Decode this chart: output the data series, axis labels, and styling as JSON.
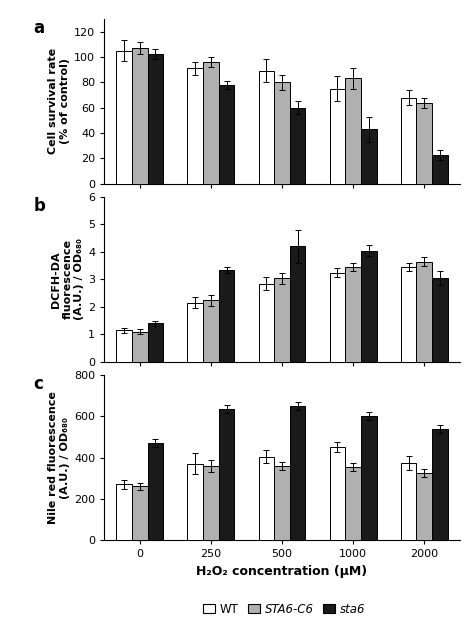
{
  "concentrations": [
    0,
    250,
    500,
    1000,
    2000
  ],
  "x_labels": [
    "0",
    "250",
    "500",
    "1000",
    "2000"
  ],
  "panel_a": {
    "ylabel": "Cell survival rate\n(% of control)",
    "ylim": [
      0,
      130
    ],
    "yticks": [
      0,
      20,
      40,
      60,
      80,
      100,
      120
    ],
    "WT": [
      105,
      91,
      89,
      75,
      68
    ],
    "STA6C6": [
      107,
      96,
      80,
      83,
      64
    ],
    "sta6": [
      102,
      78,
      60,
      43,
      23
    ],
    "WT_err": [
      8,
      5,
      9,
      10,
      6
    ],
    "STA6C6_err": [
      5,
      4,
      6,
      8,
      4
    ],
    "sta6_err": [
      4,
      3,
      5,
      10,
      4
    ]
  },
  "panel_b": {
    "ylabel": "DCFH-DA\nfluorescence\n(A.U.) / OD₆₈₀",
    "ylim": [
      0,
      6
    ],
    "yticks": [
      0,
      1,
      2,
      3,
      4,
      5,
      6
    ],
    "WT": [
      1.15,
      2.15,
      2.85,
      3.25,
      3.45
    ],
    "STA6C6": [
      1.1,
      2.25,
      3.05,
      3.45,
      3.65
    ],
    "sta6": [
      1.4,
      3.35,
      4.2,
      4.05,
      3.05
    ],
    "WT_err": [
      0.1,
      0.2,
      0.25,
      0.15,
      0.15
    ],
    "STA6C6_err": [
      0.08,
      0.2,
      0.2,
      0.15,
      0.15
    ],
    "sta6_err": [
      0.08,
      0.1,
      0.6,
      0.2,
      0.25
    ]
  },
  "panel_c": {
    "ylabel": "Nile red fluorescence\n(A.U.) / OD₆₈₀",
    "ylim": [
      0,
      800
    ],
    "yticks": [
      0,
      200,
      400,
      600,
      800
    ],
    "WT": [
      270,
      370,
      405,
      450,
      375
    ],
    "STA6C6": [
      260,
      360,
      360,
      355,
      325
    ],
    "sta6": [
      470,
      635,
      650,
      600,
      540
    ],
    "WT_err": [
      20,
      50,
      30,
      25,
      35
    ],
    "STA6C6_err": [
      15,
      30,
      20,
      20,
      20
    ],
    "sta6_err": [
      20,
      20,
      20,
      20,
      20
    ]
  },
  "colors": {
    "WT": "#ffffff",
    "STA6C6": "#b0b0b0",
    "sta6": "#1a1a1a"
  },
  "edgecolor": "#000000",
  "bar_width": 0.22,
  "capsize": 2,
  "xlabel": "H₂O₂ concentration (μM)"
}
